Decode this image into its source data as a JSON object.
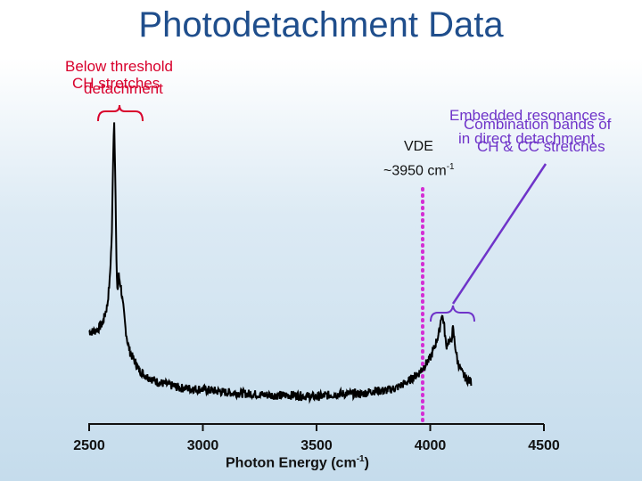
{
  "title": "Photodetachment Data",
  "annotations": {
    "below_threshold_line1": "Below threshold",
    "below_threshold_line2": "detachment",
    "ch_stretches": "CH stretches",
    "embedded_line1": "Embedded resonances",
    "embedded_line2": "in direct detachment",
    "combination_line1": "Combination bands of",
    "combination_line2": "CH & CC stretches",
    "vde_label": "VDE",
    "vde_value": "~3950 cm",
    "vde_exp": "-1"
  },
  "colors": {
    "title": "#1f4e8c",
    "red_annotation": "#d8002c",
    "purple_annotation": "#6f34c9",
    "vde_line": "#d42fd4",
    "data": "#000000"
  },
  "chart_data": {
    "type": "line",
    "title": "",
    "xlabel": "Photon Energy (cm",
    "xlabel_exp": "-1",
    "xlabel_close": ")",
    "ylabel": "",
    "xlim": [
      2500,
      4500
    ],
    "ylim": [
      0,
      1
    ],
    "x_ticks": [
      2500,
      3000,
      3500,
      4000,
      4500
    ],
    "x_tick_labels": [
      "2500",
      "3000",
      "3500",
      "4000",
      "4500"
    ],
    "grid": false,
    "vde_position": 3950,
    "series": [
      {
        "x": [
          2500,
          2520,
          2540,
          2560,
          2580,
          2590,
          2600,
          2605,
          2610,
          2615,
          2620,
          2625,
          2630,
          2640,
          2650,
          2660,
          2670,
          2680,
          2700,
          2720,
          2750,
          2800,
          2850,
          2900,
          3000,
          3100,
          3200,
          3300,
          3400,
          3500,
          3600,
          3700,
          3750,
          3800,
          3850,
          3900,
          3950,
          3980,
          4000,
          4020,
          4040,
          4050,
          4060,
          4070,
          4080,
          4090,
          4100,
          4110,
          4120,
          4140,
          4160,
          4180
        ],
        "y": [
          0.27,
          0.27,
          0.28,
          0.3,
          0.36,
          0.44,
          0.6,
          0.85,
          0.99,
          0.78,
          0.5,
          0.4,
          0.46,
          0.42,
          0.35,
          0.28,
          0.23,
          0.2,
          0.17,
          0.14,
          0.12,
          0.1,
          0.09,
          0.08,
          0.075,
          0.065,
          0.06,
          0.055,
          0.055,
          0.05,
          0.06,
          0.06,
          0.07,
          0.07,
          0.08,
          0.1,
          0.13,
          0.16,
          0.18,
          0.22,
          0.27,
          0.33,
          0.3,
          0.22,
          0.24,
          0.23,
          0.28,
          0.22,
          0.17,
          0.13,
          0.11,
          0.1
        ]
      }
    ]
  }
}
